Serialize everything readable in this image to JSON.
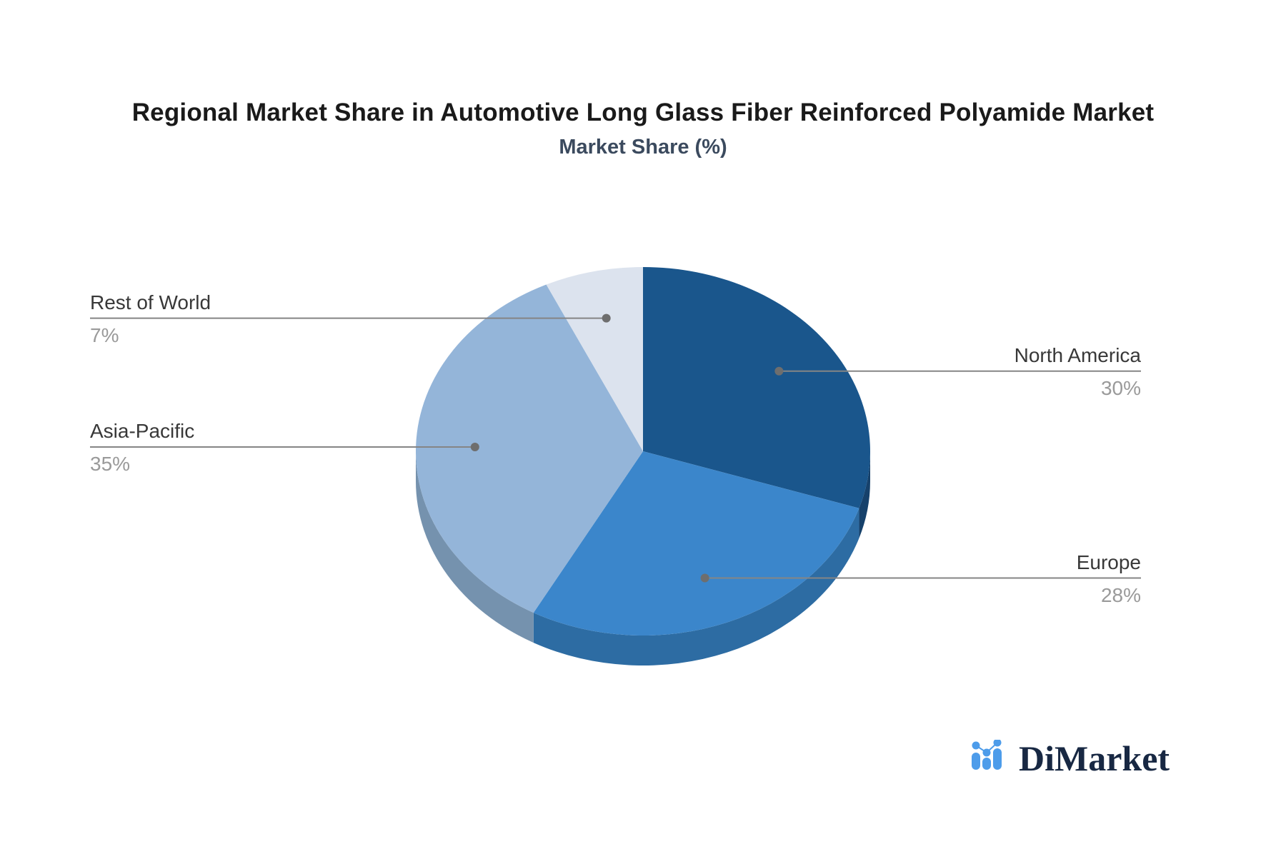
{
  "header": {
    "title": "Regional Market Share in Automotive Long Glass Fiber Reinforced Polyamide Market",
    "subtitle": "Market Share (%)"
  },
  "chart_data": {
    "type": "pie",
    "style": "3d-pie",
    "title": "Regional Market Share in Automotive Long Glass Fiber Reinforced Polyamide Market",
    "value_axis_label": "Market Share (%)",
    "unit": "%",
    "start_angle_deg": 0,
    "direction": "clockwise",
    "legend_position": "none",
    "categories": [
      "North America",
      "Europe",
      "Asia-Pacific",
      "Rest of World"
    ],
    "values": [
      30,
      28,
      35,
      7
    ],
    "slices": [
      {
        "label": "North America",
        "value": 30,
        "display": "30%",
        "color": "#1A568C",
        "side_color": "#16416B",
        "label_side": "right"
      },
      {
        "label": "Europe",
        "value": 28,
        "display": "28%",
        "color": "#3B86CB",
        "side_color": "#2D6CA3",
        "label_side": "right"
      },
      {
        "label": "Asia-Pacific",
        "value": 35,
        "display": "35%",
        "color": "#94B5D9",
        "side_color": "#7592AE",
        "label_side": "left"
      },
      {
        "label": "Rest of World",
        "value": 7,
        "display": "7%",
        "color": "#DCE3EE",
        "side_color": "#AEB9C9",
        "label_side": "left"
      }
    ],
    "label_text_color": "#383838",
    "label_value_color": "#9a9a9a",
    "leader_line_color": "#858585",
    "leader_dot_color": "#6e6e6e"
  },
  "branding": {
    "logo_text": "DiMarket",
    "logo_icon": "bar-chart-icon",
    "logo_icon_color": "#4D9CEA",
    "logo_text_color": "#182843"
  }
}
